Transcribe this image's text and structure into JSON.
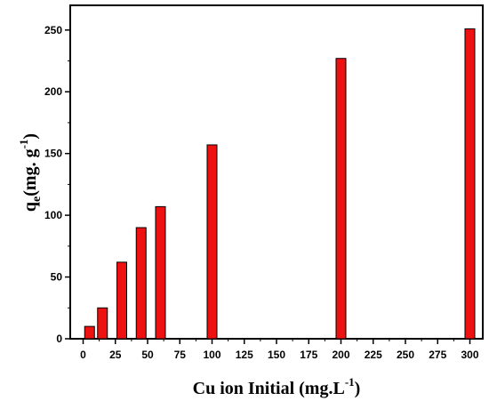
{
  "chart_data": {
    "type": "bar",
    "xlabel_main": "Cu ion Initial  (mg.L",
    "xlabel_sup": "-1",
    "xlabel_close": ")",
    "ylabel_main": "q",
    "ylabel_sub": "e",
    "ylabel_rest": "(mg. g",
    "ylabel_sup": "-1",
    "ylabel_close": ")",
    "xlim": [
      -10,
      310
    ],
    "ylim": [
      0,
      270
    ],
    "x_ticks": [
      0,
      25,
      50,
      75,
      100,
      125,
      150,
      175,
      200,
      225,
      250,
      275,
      300
    ],
    "y_ticks": [
      0,
      50,
      100,
      150,
      200,
      250
    ],
    "x": [
      5,
      15,
      30,
      45,
      60,
      100,
      200,
      300
    ],
    "values": [
      10,
      25,
      62,
      90,
      107,
      157,
      227,
      251
    ],
    "bar_color": "#ee1111",
    "bar_edge": "#000000",
    "grid": false
  }
}
